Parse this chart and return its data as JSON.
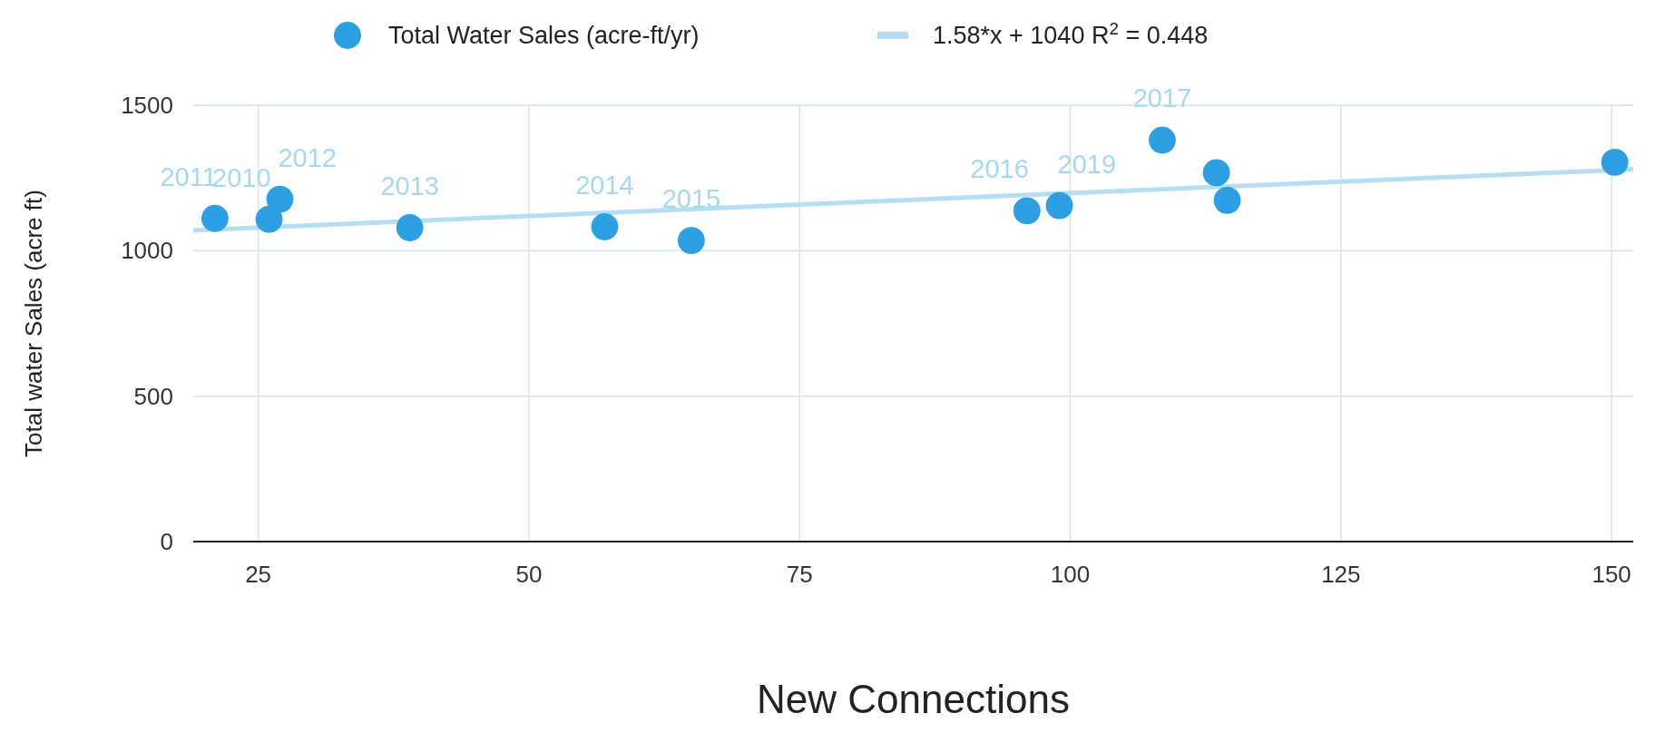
{
  "chart_data": {
    "type": "scatter",
    "xlabel": "New Connections",
    "ylabel": "Total water Sales (acre ft)",
    "xlim": [
      19,
      152
    ],
    "xticks": [
      25,
      50,
      75,
      100,
      125,
      150
    ],
    "ylim": [
      0,
      1500
    ],
    "yticks": [
      0,
      500,
      1000,
      1500
    ],
    "grid": true,
    "legend": "top",
    "series": [
      {
        "name": "Total Water Sales (acre-ft/yr)",
        "color": "#2e9fe2",
        "marker": "circle",
        "x": [
          21,
          26,
          27,
          39,
          57,
          65,
          96,
          99,
          108.5,
          113.5,
          114.5,
          150.3
        ],
        "values": [
          1111,
          1108,
          1177,
          1079,
          1082,
          1035,
          1137,
          1155,
          1380,
          1268,
          1173,
          1304
        ]
      },
      {
        "name": "1.58*x + 1040 R$^{2}$ = 0.448",
        "type": "line",
        "color": "#b5def5",
        "x": [
          19,
          152
        ],
        "values": [
          1070,
          1280
        ],
        "marker": "none"
      }
    ],
    "annotations": [
      {
        "text": "2011",
        "x": 21,
        "y": 1111
      },
      {
        "text": "2010",
        "x": 26,
        "y": 1108
      },
      {
        "text": "2012",
        "x": 27,
        "y": 1177
      },
      {
        "text": "2013",
        "x": 39,
        "y": 1079
      },
      {
        "text": "2014",
        "x": 57,
        "y": 1082
      },
      {
        "text": "2015",
        "x": 65,
        "y": 1035
      },
      {
        "text": "2016",
        "x": 96,
        "y": 1137
      },
      {
        "text": "2019",
        "x": 99,
        "y": 1155
      },
      {
        "text": "2017",
        "x": 108.5,
        "y": 1380
      }
    ]
  }
}
